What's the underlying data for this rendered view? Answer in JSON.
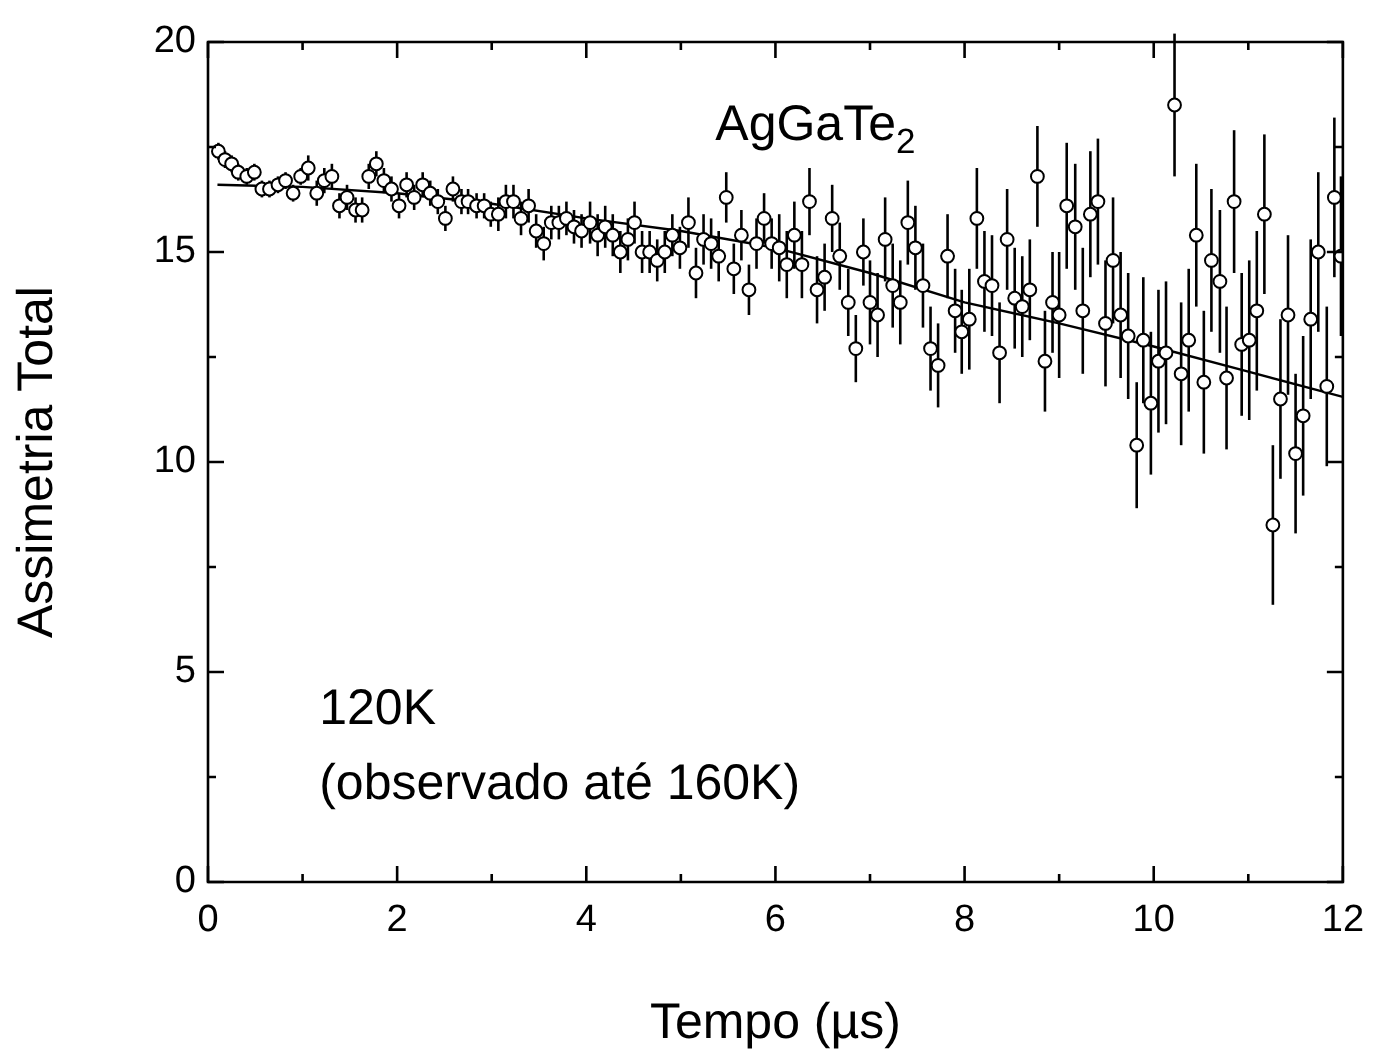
{
  "chart_data": {
    "type": "scatter",
    "xlabel": "Tempo (µs)",
    "ylabel": "Assimetria Total",
    "annotations": [
      "AgGaTe$_{2}$",
      "120K",
      "(observado até 160K)"
    ],
    "xlim": [
      0,
      12
    ],
    "xticks": [
      0,
      2,
      4,
      6,
      8,
      10,
      12
    ],
    "ylim": [
      0,
      20
    ],
    "yticks": [
      0,
      5,
      10,
      15,
      20
    ],
    "marker": "circle",
    "legend": false,
    "series": [
      {
        "type": "scatter",
        "color": "#000000",
        "x": [
          0.11,
          0.18,
          0.25,
          0.32,
          0.41,
          0.49,
          0.57,
          0.65,
          0.74,
          0.82,
          0.9,
          0.98,
          1.06,
          1.15,
          1.23,
          1.31,
          1.39,
          1.47,
          1.56,
          1.63,
          1.7,
          1.78,
          1.86,
          1.94,
          2.02,
          2.1,
          2.18,
          2.27,
          2.35,
          2.43,
          2.51,
          2.59,
          2.68,
          2.75,
          2.84,
          2.92,
          2.99,
          3.07,
          3.15,
          3.23,
          3.31,
          3.39,
          3.47,
          3.55,
          3.63,
          3.71,
          3.79,
          3.87,
          3.95,
          4.04,
          4.12,
          4.2,
          4.28,
          4.36,
          4.44,
          4.51,
          4.59,
          4.67,
          4.75,
          4.83,
          4.91,
          4.99,
          5.08,
          5.16,
          5.24,
          5.32,
          5.4,
          5.48,
          5.56,
          5.64,
          5.72,
          5.8,
          5.88,
          5.96,
          6.04,
          6.12,
          6.2,
          6.28,
          6.36,
          6.44,
          6.52,
          6.6,
          6.68,
          6.77,
          6.85,
          6.93,
          7.0,
          7.08,
          7.16,
          7.24,
          7.32,
          7.4,
          7.48,
          7.56,
          7.64,
          7.72,
          7.82,
          7.9,
          7.97,
          8.05,
          8.13,
          8.21,
          8.29,
          8.37,
          8.45,
          8.53,
          8.61,
          8.69,
          8.77,
          8.85,
          8.93,
          9.0,
          9.08,
          9.17,
          9.25,
          9.33,
          9.41,
          9.49,
          9.57,
          9.65,
          9.73,
          9.82,
          9.89,
          9.97,
          10.05,
          10.13,
          10.22,
          10.29,
          10.37,
          10.45,
          10.53,
          10.61,
          10.7,
          10.77,
          10.85,
          10.93,
          11.01,
          11.09,
          11.17,
          11.26,
          11.34,
          11.42,
          11.5,
          11.58,
          11.66,
          11.74,
          11.83,
          11.91,
          11.98
        ],
        "values": [
          17.4,
          17.2,
          17.1,
          16.9,
          16.8,
          16.9,
          16.5,
          16.5,
          16.6,
          16.7,
          16.4,
          16.8,
          17.0,
          16.4,
          16.7,
          16.8,
          16.1,
          16.3,
          16.0,
          16.0,
          16.8,
          17.1,
          16.7,
          16.5,
          16.1,
          16.6,
          16.3,
          16.6,
          16.4,
          16.2,
          15.8,
          16.5,
          16.2,
          16.2,
          16.1,
          16.1,
          15.9,
          15.9,
          16.2,
          16.2,
          15.8,
          16.1,
          15.5,
          15.2,
          15.7,
          15.7,
          15.8,
          15.6,
          15.5,
          15.7,
          15.4,
          15.6,
          15.4,
          15.0,
          15.3,
          15.7,
          15.0,
          15.0,
          14.8,
          15.0,
          15.4,
          15.1,
          15.7,
          14.5,
          15.3,
          15.2,
          14.9,
          16.3,
          14.6,
          15.4,
          14.1,
          15.2,
          15.8,
          15.2,
          15.1,
          14.7,
          15.4,
          14.7,
          16.2,
          14.1,
          14.4,
          15.8,
          14.9,
          13.8,
          12.7,
          15.0,
          13.8,
          13.5,
          15.3,
          14.2,
          13.8,
          15.7,
          15.1,
          14.2,
          12.7,
          12.3,
          14.9,
          13.6,
          13.1,
          13.4,
          15.8,
          14.3,
          14.2,
          12.6,
          15.3,
          13.9,
          13.7,
          14.1,
          16.8,
          12.4,
          13.8,
          13.5,
          16.1,
          15.6,
          13.6,
          15.9,
          16.2,
          13.3,
          14.8,
          13.5,
          13.0,
          10.4,
          12.9,
          11.4,
          12.4,
          12.6,
          18.5,
          12.1,
          12.9,
          15.4,
          11.9,
          14.8,
          14.3,
          12.0,
          16.2,
          12.8,
          12.9,
          13.6,
          15.9,
          8.5,
          11.5,
          13.5,
          10.2,
          11.1,
          13.4,
          15.0,
          11.8,
          16.3,
          14.9
        ],
        "errors": [
          0.2,
          0.2,
          0.2,
          0.2,
          0.2,
          0.2,
          0.2,
          0.2,
          0.2,
          0.2,
          0.2,
          0.2,
          0.3,
          0.3,
          0.3,
          0.3,
          0.3,
          0.3,
          0.3,
          0.3,
          0.3,
          0.3,
          0.3,
          0.3,
          0.3,
          0.3,
          0.3,
          0.3,
          0.3,
          0.3,
          0.3,
          0.3,
          0.3,
          0.3,
          0.3,
          0.3,
          0.3,
          0.4,
          0.4,
          0.4,
          0.4,
          0.4,
          0.4,
          0.4,
          0.4,
          0.4,
          0.4,
          0.4,
          0.4,
          0.5,
          0.5,
          0.5,
          0.5,
          0.5,
          0.5,
          0.5,
          0.5,
          0.5,
          0.5,
          0.5,
          0.5,
          0.5,
          0.6,
          0.6,
          0.6,
          0.6,
          0.6,
          0.6,
          0.6,
          0.6,
          0.6,
          0.6,
          0.6,
          0.6,
          0.8,
          0.8,
          0.8,
          0.8,
          0.8,
          0.8,
          0.8,
          0.8,
          0.8,
          0.8,
          0.8,
          0.8,
          1.0,
          1.0,
          1.0,
          1.0,
          1.0,
          1.0,
          1.0,
          1.0,
          1.0,
          1.0,
          1.0,
          1.0,
          1.0,
          1.2,
          1.2,
          1.2,
          1.2,
          1.2,
          1.2,
          1.2,
          1.2,
          1.2,
          1.2,
          1.2,
          1.2,
          1.5,
          1.5,
          1.5,
          1.5,
          1.5,
          1.5,
          1.5,
          1.5,
          1.5,
          1.5,
          1.5,
          1.5,
          1.7,
          1.7,
          1.7,
          1.7,
          1.7,
          1.7,
          1.7,
          1.7,
          1.7,
          1.7,
          1.7,
          1.7,
          1.7,
          1.9,
          1.9,
          1.9,
          1.9,
          1.9,
          1.9,
          1.9,
          1.9,
          1.9,
          1.9,
          1.9,
          1.9,
          1.9
        ]
      },
      {
        "type": "line",
        "color": "#000000",
        "marker": "none",
        "line_style": "solid",
        "x": [
          0.1,
          1,
          2,
          3,
          4,
          5,
          6,
          7,
          8,
          9,
          10,
          11,
          12
        ],
        "values": [
          16.6,
          16.55,
          16.4,
          16.15,
          15.8,
          15.5,
          15.1,
          14.5,
          13.8,
          13.3,
          12.75,
          12.15,
          11.55
        ]
      }
    ]
  }
}
